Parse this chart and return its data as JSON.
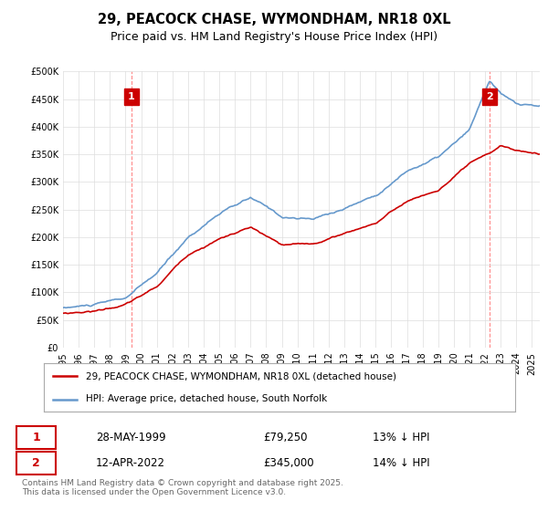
{
  "title": "29, PEACOCK CHASE, WYMONDHAM, NR18 0XL",
  "subtitle": "Price paid vs. HM Land Registry's House Price Index (HPI)",
  "legend_line1": "29, PEACOCK CHASE, WYMONDHAM, NR18 0XL (detached house)",
  "legend_line2": "HPI: Average price, detached house, South Norfolk",
  "annotation1_date": "28-MAY-1999",
  "annotation1_price": "£79,250",
  "annotation1_hpi": "13% ↓ HPI",
  "annotation2_date": "12-APR-2022",
  "annotation2_price": "£345,000",
  "annotation2_hpi": "14% ↓ HPI",
  "footer": "Contains HM Land Registry data © Crown copyright and database right 2025.\nThis data is licensed under the Open Government Licence v3.0.",
  "red_color": "#cc0000",
  "blue_color": "#6699cc",
  "annotation_box_color": "#cc0000",
  "vline_color": "#ff8888",
  "ylim_min": 0,
  "ylim_max": 500000
}
